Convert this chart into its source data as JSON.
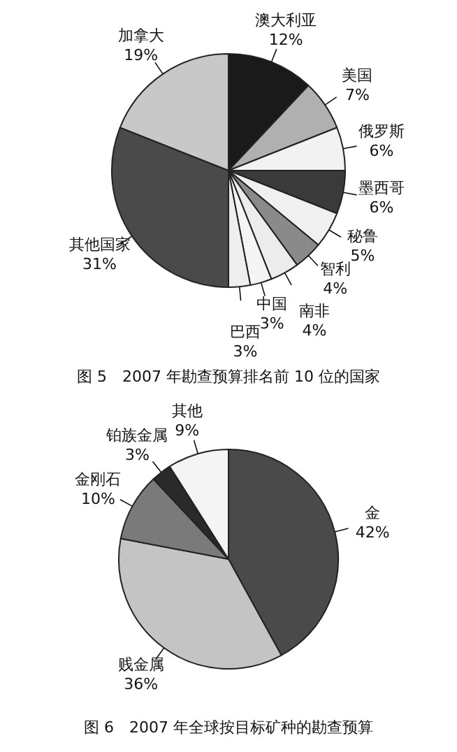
{
  "chart_data": [
    {
      "type": "pie",
      "title": "图 5　2007 年勘查预算排名前 10 位的国家",
      "categories": [
        "澳大利亚",
        "美国",
        "俄罗斯",
        "墨西哥",
        "秘鲁",
        "智利",
        "南非",
        "中国",
        "巴西",
        "其他国家",
        "加拿大"
      ],
      "values": [
        12,
        7,
        6,
        6,
        5,
        4,
        4,
        3,
        3,
        31,
        19
      ],
      "value_labels": [
        "12%",
        "7%",
        "6%",
        "6%",
        "5%",
        "4%",
        "4%",
        "3%",
        "3%",
        "31%",
        "19%"
      ],
      "colors": [
        "#1a1a1a",
        "#b0b0b0",
        "#f2f2f2",
        "#3a3a3a",
        "#f0f0f0",
        "#8a8a8a",
        "#ececec",
        "#f4f4f4",
        "#eeeeee",
        "#4a4a4a",
        "#c8c8c8"
      ],
      "legend": false
    },
    {
      "type": "pie",
      "title": "图 6　2007 年全球按目标矿种的勘查预算",
      "categories": [
        "金",
        "贱金属",
        "金刚石",
        "铂族金属",
        "其他"
      ],
      "values": [
        42,
        36,
        10,
        3,
        9
      ],
      "value_labels": [
        "42%",
        "36%",
        "10%",
        "3%",
        "9%"
      ],
      "colors": [
        "#4a4a4a",
        "#c4c4c4",
        "#7a7a7a",
        "#2a2a2a",
        "#f4f4f4"
      ],
      "legend": false
    }
  ]
}
